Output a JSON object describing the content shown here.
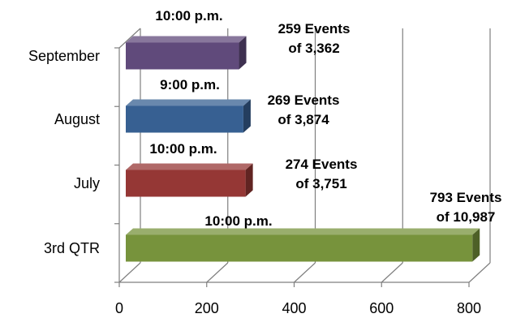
{
  "chart_data": {
    "type": "bar",
    "orientation": "horizontal",
    "style": "3d",
    "categories": [
      "3rd QTR",
      "July",
      "August",
      "September"
    ],
    "values": [
      793,
      274,
      269,
      259
    ],
    "totals": [
      10987,
      3751,
      3874,
      3362
    ],
    "bar_colors": [
      "#77933C",
      "#953735",
      "#376092",
      "#604A7B"
    ],
    "time_labels": [
      "10:00 p.m.",
      "10:00 p.m.",
      "9:00 p.m.",
      "10:00 p.m."
    ],
    "count_labels": [
      [
        "793 Events",
        "of 10,987"
      ],
      [
        "274 Events",
        "of 3,751"
      ],
      [
        "269 Events",
        "of 3,874"
      ],
      [
        "259 Events",
        "of 3,362"
      ]
    ],
    "xlim": [
      0,
      800
    ],
    "xticks": [
      "0",
      "200",
      "400",
      "600",
      "800"
    ],
    "grid": true,
    "legend": false,
    "title": "",
    "xlabel": "",
    "ylabel": ""
  }
}
